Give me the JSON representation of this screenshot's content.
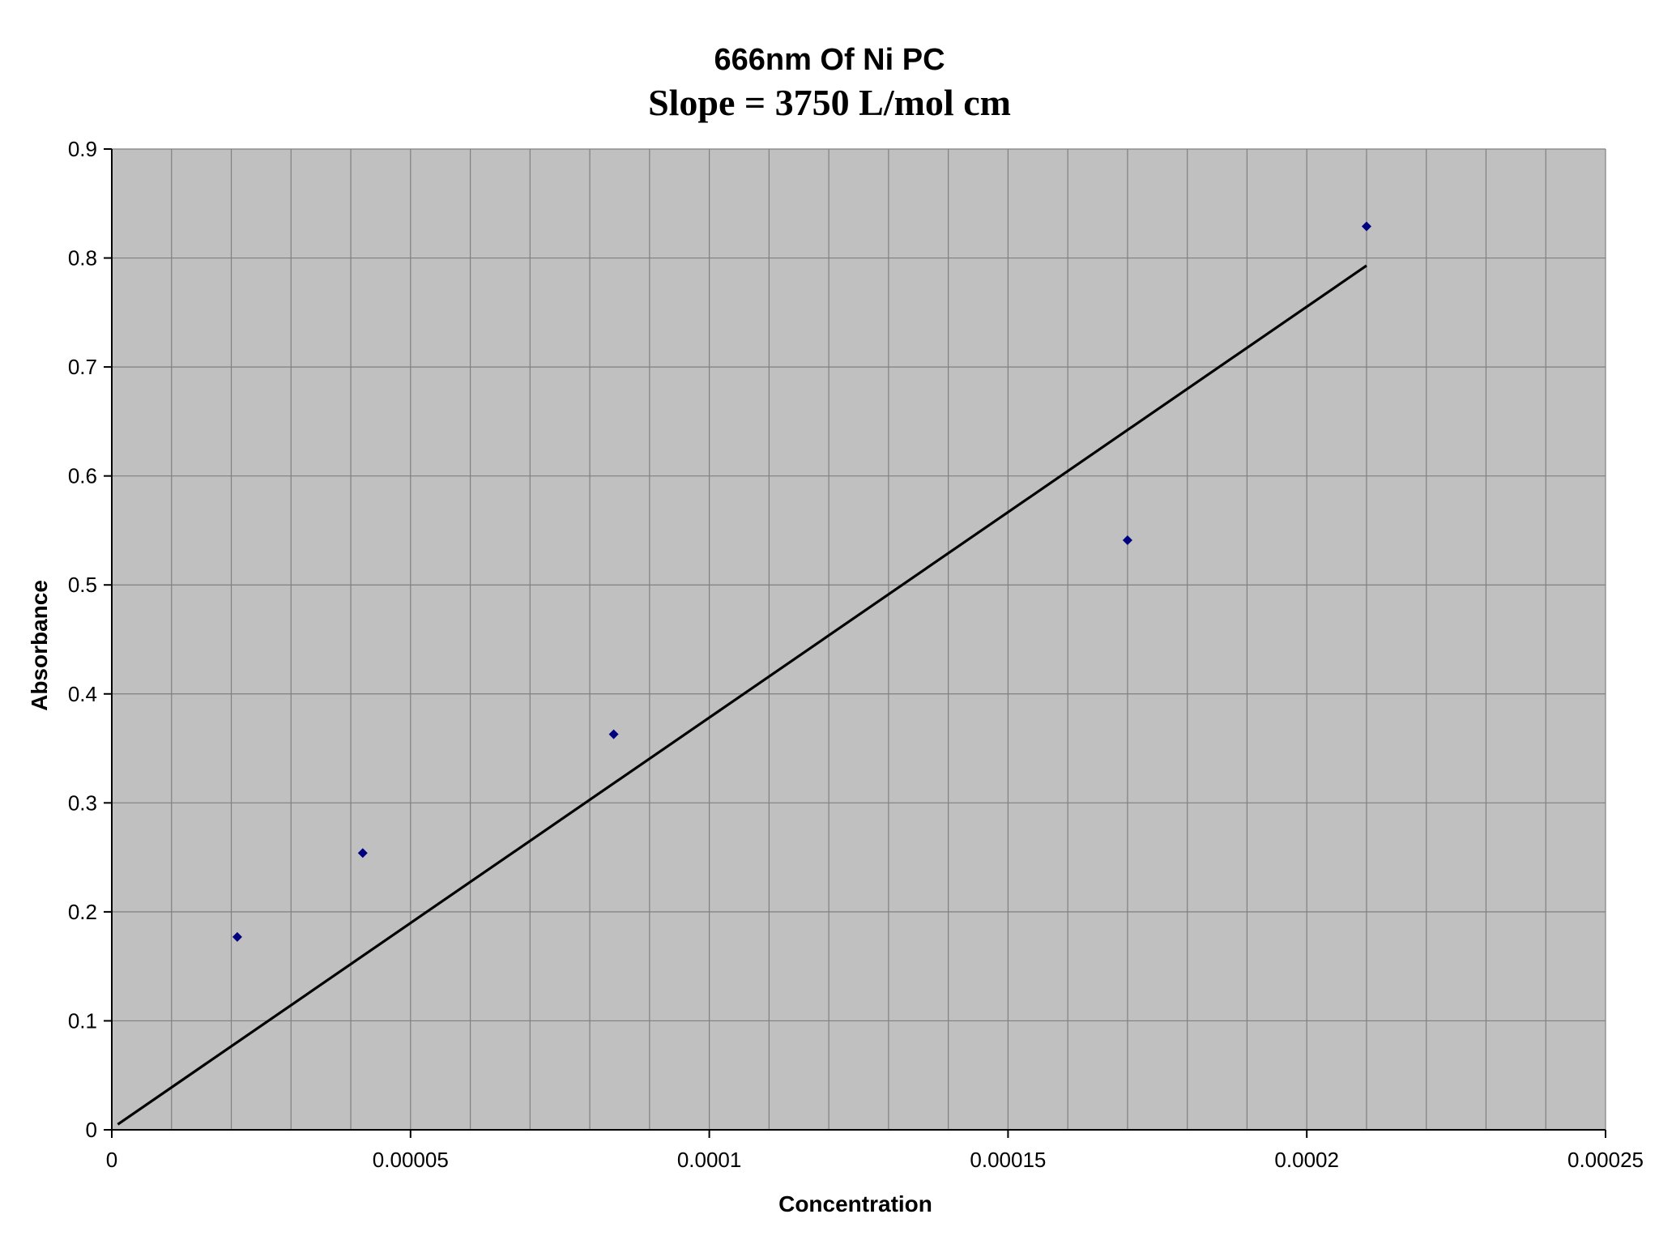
{
  "chart_data": {
    "type": "scatter",
    "title": "666nm Of Ni PC",
    "subtitle": "Slope = 3750 L/mol cm",
    "xlabel": "Concentration",
    "ylabel": "Absorbance",
    "xlim": [
      0,
      0.00025
    ],
    "ylim": [
      0,
      0.9
    ],
    "x_tick_labels": [
      "0",
      "0.00005",
      "0.0001",
      "0.00015",
      "0.0002",
      "0.00025"
    ],
    "y_tick_labels": [
      "0",
      "0.1",
      "0.2",
      "0.3",
      "0.4",
      "0.5",
      "0.6",
      "0.7",
      "0.8",
      "0.9"
    ],
    "x_ticks": [
      0,
      5e-05,
      0.0001,
      0.00015,
      0.0002,
      0.00025
    ],
    "y_ticks": [
      0,
      0.1,
      0.2,
      0.3,
      0.4,
      0.5,
      0.6,
      0.7,
      0.8,
      0.9
    ],
    "x_minor_step": 1e-05,
    "grid": true,
    "legend": "none",
    "series": [
      {
        "marker": "diamond",
        "x": [
          2.1e-05,
          4.2e-05,
          8.4e-05,
          0.00017,
          0.00021
        ],
        "y": [
          0.177,
          0.254,
          0.363,
          0.541,
          0.829
        ]
      }
    ],
    "trendline": {
      "x": [
        1e-06,
        0.00021
      ],
      "y": [
        0.005,
        0.793
      ]
    },
    "colors": {
      "plot_background": "#c0c0c0",
      "gridline": "#808080",
      "marker": "#000080",
      "trendline": "#000000",
      "axis": "#000000"
    }
  }
}
